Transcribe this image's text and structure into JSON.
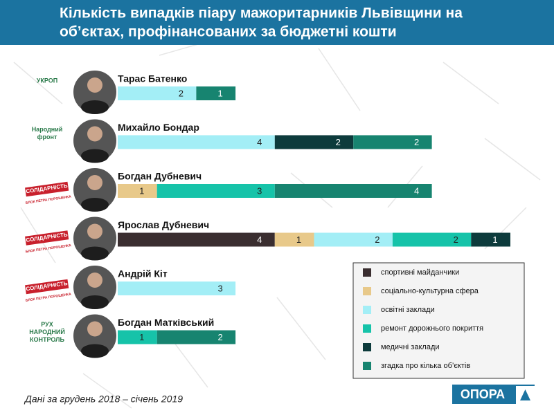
{
  "chart_data": {
    "type": "bar",
    "orientation": "horizontal",
    "stacked": true,
    "title": "Кількість випадків піару мажоритарників Львівщини на об’єктах, профінансованих за бюджетні кошти",
    "title_lines": [
      "Кількість випадків піару мажоритарників Львівщини на",
      "об’єктах, профінансованих за бюджетні кошти"
    ],
    "categories": [
      "Тарас Батенко",
      "Михайло Бондар",
      "Богдан Дубневич",
      "Ярослав Дубневич",
      "Андрій Кіт",
      "Богдан Матківський"
    ],
    "party_logos": [
      [
        "УКРОП"
      ],
      [
        "Народний",
        "фронт"
      ],
      [
        "СОЛІДАРНІСТЬ",
        "БЛОК ПЕТРА ПОРОШЕНКА"
      ],
      [
        "СОЛІДАРНІСТЬ",
        "БЛОК ПЕТРА ПОРОШЕНКА"
      ],
      [
        "СОЛІДАРНІСТЬ",
        "БЛОК ПЕТРА ПОРОШЕНКА"
      ],
      [
        "РУХ",
        "НАРОДНИЙ",
        "КОНТРОЛЬ"
      ]
    ],
    "series": [
      {
        "name": "спортивні майданчики",
        "color": "#3a2e30",
        "values": [
          null,
          null,
          null,
          4,
          null,
          null
        ]
      },
      {
        "name": "соціально-культурна сфера",
        "color": "#e8c98a",
        "values": [
          null,
          null,
          1,
          1,
          null,
          null
        ]
      },
      {
        "name": "освітні заклади",
        "color": "#a3eef6",
        "values": [
          2,
          4,
          null,
          2,
          3,
          null
        ]
      },
      {
        "name": "ремонт дорожнього покриття",
        "color": "#16c3a9",
        "values": [
          null,
          null,
          3,
          2,
          null,
          1
        ]
      },
      {
        "name": "медичні заклади",
        "color": "#0d3b3c",
        "values": [
          null,
          2,
          null,
          1,
          null,
          null
        ]
      },
      {
        "name": "згадка про кілька об’єктів",
        "color": "#178470",
        "values": [
          1,
          2,
          4,
          null,
          null,
          2
        ]
      }
    ],
    "legend": "bottom-right",
    "footnote": "Дані за грудень 2018 – січень 2019",
    "brand": "ОПОРА"
  }
}
